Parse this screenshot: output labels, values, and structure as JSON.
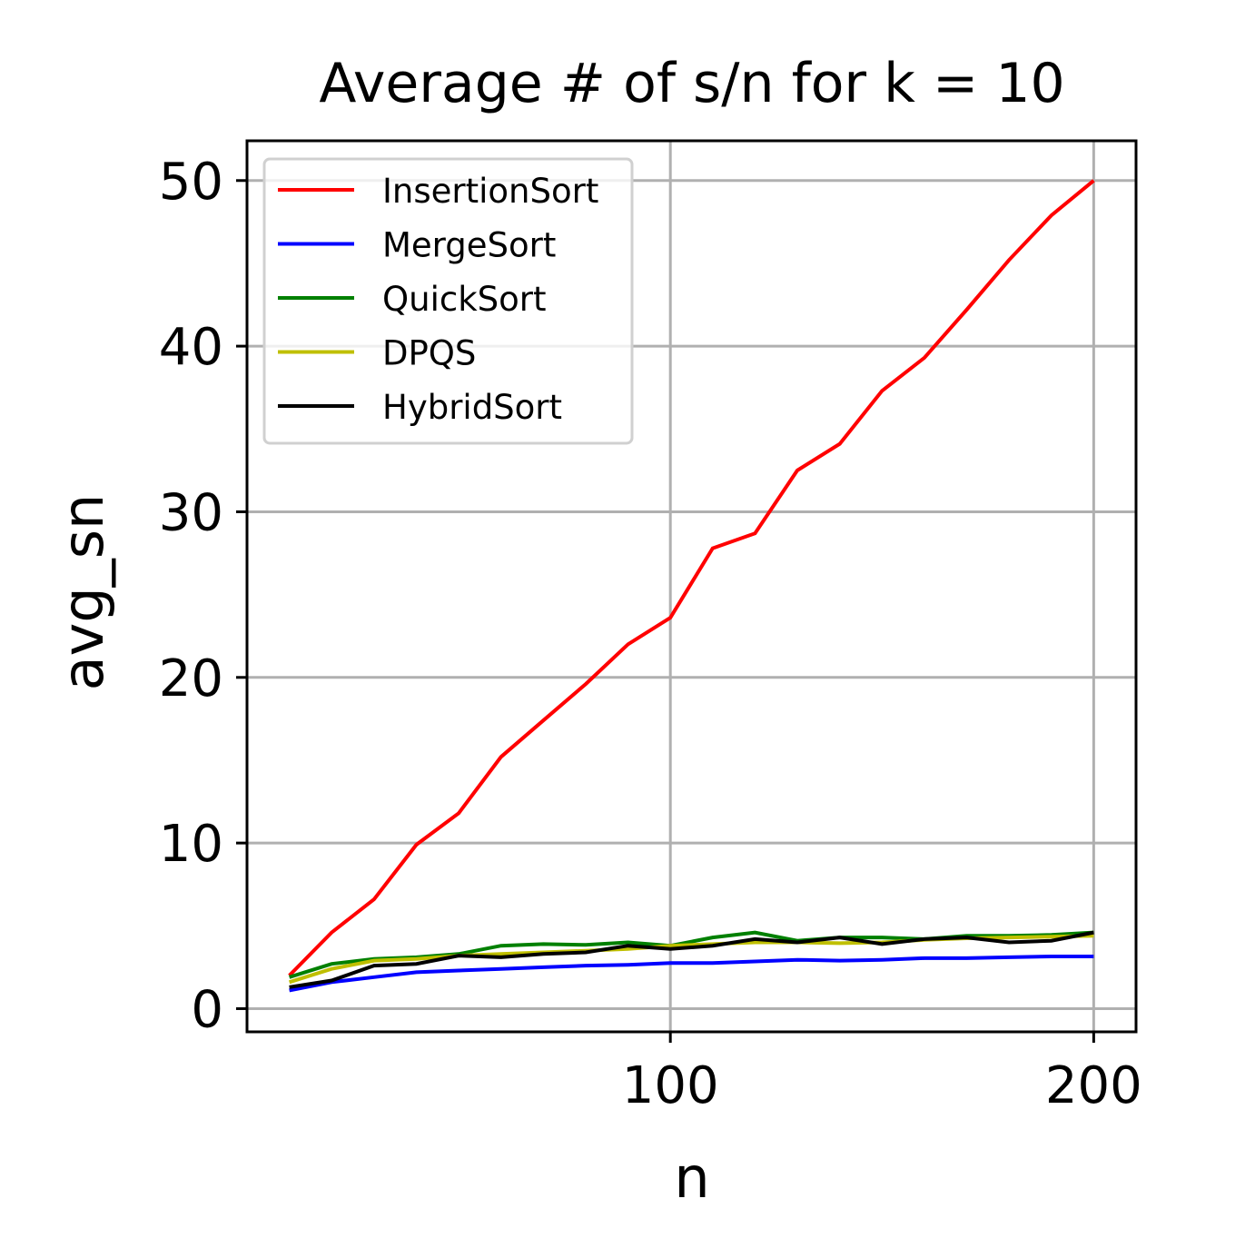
{
  "chart_data": {
    "type": "line",
    "title": "Average # of s/n for k = 10",
    "xlabel": "n",
    "ylabel": "avg_sn",
    "xlim": [
      0,
      210
    ],
    "ylim": [
      -1.4,
      52.4
    ],
    "xticks": [
      100,
      200
    ],
    "yticks": [
      0,
      10,
      20,
      30,
      40,
      50
    ],
    "grid": true,
    "legend_position": "top-left",
    "x": [
      10,
      20,
      30,
      40,
      50,
      60,
      70,
      80,
      90,
      100,
      110,
      120,
      130,
      140,
      150,
      160,
      170,
      180,
      190,
      200
    ],
    "series": [
      {
        "name": "InsertionSort",
        "color": "#ff0000",
        "values": [
          2.0,
          4.6,
          6.6,
          9.9,
          11.8,
          15.2,
          17.4,
          19.6,
          22.0,
          23.6,
          27.8,
          28.7,
          32.5,
          34.1,
          37.3,
          39.3,
          42.2,
          45.2,
          47.9,
          50.0
        ]
      },
      {
        "name": "MergeSort",
        "color": "#0000ff",
        "values": [
          1.1,
          1.6,
          1.9,
          2.2,
          2.3,
          2.4,
          2.5,
          2.6,
          2.65,
          2.75,
          2.75,
          2.85,
          2.95,
          2.9,
          2.95,
          3.05,
          3.05,
          3.1,
          3.15,
          3.15
        ]
      },
      {
        "name": "QuickSort",
        "color": "#008000",
        "values": [
          1.9,
          2.7,
          3.0,
          3.1,
          3.3,
          3.8,
          3.9,
          3.85,
          4.0,
          3.8,
          4.3,
          4.6,
          4.1,
          4.3,
          4.3,
          4.2,
          4.4,
          4.4,
          4.45,
          4.6
        ]
      },
      {
        "name": "DPQS",
        "color": "#bfbf00",
        "values": [
          1.6,
          2.4,
          2.9,
          3.0,
          3.2,
          3.3,
          3.4,
          3.5,
          3.6,
          3.8,
          3.9,
          4.0,
          4.0,
          3.95,
          4.0,
          4.15,
          4.25,
          4.3,
          4.35,
          4.4
        ]
      },
      {
        "name": "HybridSort",
        "color": "#000000",
        "values": [
          1.3,
          1.7,
          2.6,
          2.7,
          3.2,
          3.1,
          3.3,
          3.4,
          3.8,
          3.6,
          3.8,
          4.2,
          4.0,
          4.3,
          3.9,
          4.2,
          4.3,
          4.0,
          4.1,
          4.6
        ]
      }
    ]
  }
}
